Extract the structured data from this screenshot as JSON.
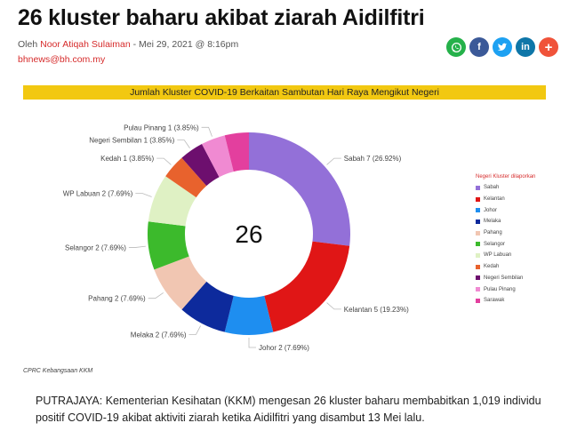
{
  "article": {
    "headline": "26 kluster baharu akibat ziarah Aidilfitri",
    "byline_prefix": "Oleh ",
    "author": "Noor Atiqah Sulaiman",
    "byline_suffix": " - Mei 29, 2021 @ 8:16pm",
    "email": "bhnews@bh.com.my",
    "paragraph": "PUTRAJAYA: Kementerian Kesihatan (KKM) mengesan 26 kluster baharu membabitkan 1,019 individu positif COVID-19 akibat aktiviti ziarah ketika Aidilfitri yang disambut 13 Mei lalu."
  },
  "share": {
    "whatsapp_icon": "whatsapp-icon",
    "facebook_icon": "facebook-icon",
    "twitter_icon": "twitter-icon",
    "linkedin_icon": "linkedin-icon",
    "more_icon": "plus-icon",
    "labels": {
      "facebook": "f",
      "linkedin": "in",
      "more": "+"
    }
  },
  "figure": {
    "banner": "Jumlah Kluster COVID-19 Berkaitan Sambutan Hari Raya Mengikut Negeri",
    "source": "CPRC Kebangsaan KKM"
  },
  "chart_data": {
    "type": "pie",
    "title": "Jumlah Kluster COVID-19 Berkaitan Sambutan Hari Raya Mengikut Negeri",
    "center_label": "26",
    "legend_title": "Negeri Kluster dilaporkan",
    "legend_position": "right",
    "slices": [
      {
        "name": "Sabah",
        "value": 7,
        "label": "Sabah 7 (26.92%)",
        "color": "#9370d8"
      },
      {
        "name": "Kelantan",
        "value": 5,
        "label": "Kelantan 5 (19.23%)",
        "color": "#e01616"
      },
      {
        "name": "Johor",
        "value": 2,
        "label": "Johor 2 (7.69%)",
        "color": "#1e8ef0"
      },
      {
        "name": "Melaka",
        "value": 2,
        "label": "Melaka 2 (7.69%)",
        "color": "#0d2a9c"
      },
      {
        "name": "Pahang",
        "value": 2,
        "label": "Pahang 2 (7.69%)",
        "color": "#f1c6b2"
      },
      {
        "name": "Selangor",
        "value": 2,
        "label": "Selangor 2 (7.69%)",
        "color": "#3cba2c"
      },
      {
        "name": "WP Labuan",
        "value": 2,
        "label": "WP Labuan 2 (7.69%)",
        "color": "#dff1c4"
      },
      {
        "name": "Kedah",
        "value": 1,
        "label": "Kedah 1 (3.85%)",
        "color": "#e8622d"
      },
      {
        "name": "Negeri Sembilan",
        "value": 1,
        "label": "Negeri Sembilan 1 (3.85%)",
        "color": "#6d0f6e"
      },
      {
        "name": "Pulau Pinang",
        "value": 1,
        "label": "Pulau Pinang 1 (3.85%)",
        "color": "#f08ad2"
      },
      {
        "name": "Sarawak",
        "value": 1,
        "label": "",
        "color": "#e33f9e"
      }
    ]
  }
}
